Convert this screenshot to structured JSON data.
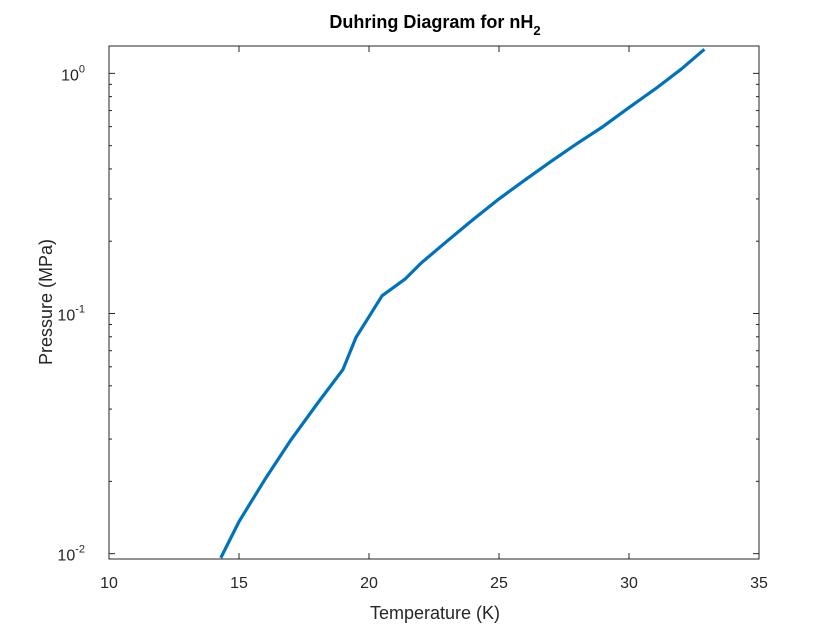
{
  "chart_data": {
    "type": "line",
    "title": "Duhring Diagram for nH",
    "title_subscript": "2",
    "xlabel": "Temperature (K)",
    "ylabel": "Pressure (MPa)",
    "xlim": [
      10,
      35
    ],
    "ylim": [
      0.0095,
      1.3
    ],
    "yscale": "log",
    "grid": false,
    "line_color": "#0072BD",
    "x_ticks": [
      {
        "value": 10,
        "label": "10"
      },
      {
        "value": 15,
        "label": "15"
      },
      {
        "value": 20,
        "label": "20"
      },
      {
        "value": 25,
        "label": "25"
      },
      {
        "value": 30,
        "label": "30"
      },
      {
        "value": 35,
        "label": "35"
      }
    ],
    "y_ticks": [
      {
        "value": 0.01,
        "base": "10",
        "exp": "-2"
      },
      {
        "value": 0.1,
        "base": "10",
        "exp": "-1"
      },
      {
        "value": 1,
        "base": "10",
        "exp": "0"
      }
    ],
    "series": [
      {
        "x": [
          14.3,
          15.0,
          16.0,
          17.0,
          18.0,
          19.0,
          19.5,
          20.0,
          20.5,
          21.4,
          22.0,
          23.0,
          24.0,
          25.0,
          26.0,
          27.0,
          28.0,
          29.0,
          30.0,
          31.0,
          32.0,
          32.9
        ],
        "y": [
          0.0096,
          0.0136,
          0.0204,
          0.0298,
          0.042,
          0.0585,
          0.0795,
          0.097,
          0.1185,
          0.1395,
          0.162,
          0.2,
          0.246,
          0.3,
          0.36,
          0.43,
          0.51,
          0.6,
          0.72,
          0.86,
          1.04,
          1.26
        ]
      }
    ]
  }
}
